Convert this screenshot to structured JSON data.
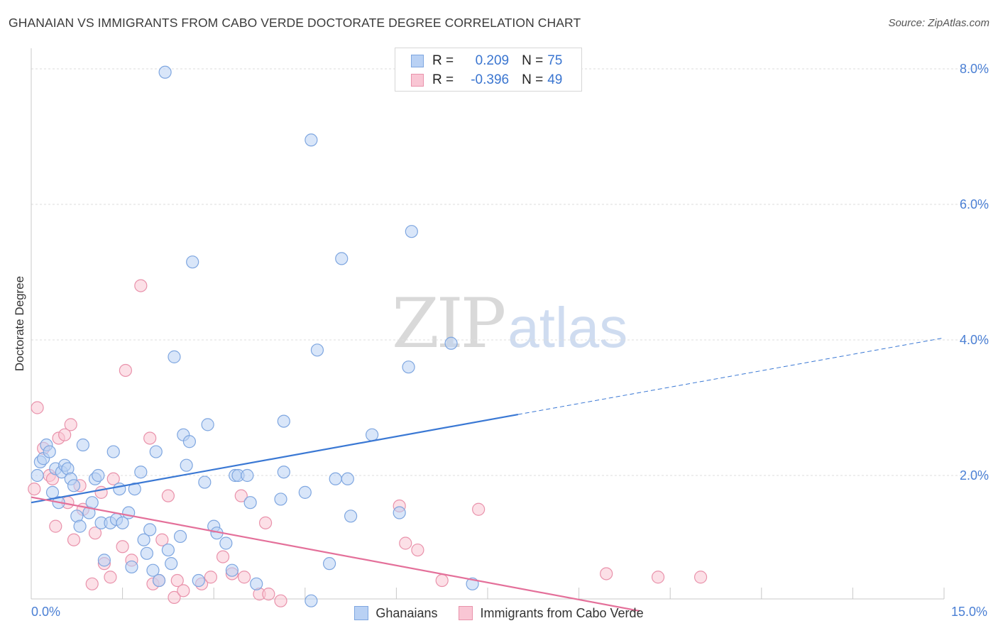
{
  "title": "GHANAIAN VS IMMIGRANTS FROM CABO VERDE DOCTORATE DEGREE CORRELATION CHART",
  "source": "Source: ZipAtlas.com",
  "watermark": {
    "zip": "ZIP",
    "atlas": "atlas"
  },
  "legend": {
    "rows": [
      {
        "r_label": "R =",
        "r_value": "0.209",
        "n_label": "N =",
        "n_value": "75",
        "fill": "#b9d1f4",
        "stroke": "#7ea6e0"
      },
      {
        "r_label": "R =",
        "r_value": "-0.396",
        "n_label": "N =",
        "n_value": "49",
        "fill": "#f9c6d4",
        "stroke": "#e992ab"
      }
    ]
  },
  "bottom_legend": [
    {
      "label": "Ghanaians",
      "fill": "#b9d1f4",
      "stroke": "#7ea6e0"
    },
    {
      "label": "Immigrants from Cabo Verde",
      "fill": "#f9c6d4",
      "stroke": "#e992ab"
    }
  ],
  "chart_data": {
    "type": "scatter",
    "title": "GHANAIAN VS IMMIGRANTS FROM CABO VERDE DOCTORATE DEGREE CORRELATION CHART",
    "xlabel": "",
    "ylabel": "Doctorate Degree",
    "xlim": [
      0,
      15
    ],
    "ylim": [
      0,
      8
    ],
    "x_tick_labels": [
      "0.0%",
      "15.0%"
    ],
    "y_ticks": [
      2,
      4,
      6,
      8
    ],
    "y_tick_labels": [
      "2.0%",
      "4.0%",
      "6.0%",
      "8.0%"
    ],
    "grid": true,
    "colors": {
      "blue": "#3a78d4",
      "pink": "#e4709a"
    },
    "series": [
      {
        "name": "Ghanaians",
        "color": "#3a78d4",
        "trend": {
          "x": [
            0,
            8.0
          ],
          "y": [
            1.6,
            2.9
          ],
          "dashed_to": [
            15,
            4.03
          ]
        },
        "points": [
          [
            0.1,
            2.0
          ],
          [
            0.15,
            2.2
          ],
          [
            0.2,
            2.25
          ],
          [
            0.25,
            2.45
          ],
          [
            0.3,
            2.35
          ],
          [
            0.35,
            1.75
          ],
          [
            0.4,
            2.1
          ],
          [
            0.45,
            1.6
          ],
          [
            0.5,
            2.05
          ],
          [
            0.55,
            2.15
          ],
          [
            0.6,
            2.1
          ],
          [
            0.65,
            1.95
          ],
          [
            0.7,
            1.85
          ],
          [
            0.75,
            1.4
          ],
          [
            0.8,
            1.25
          ],
          [
            0.85,
            2.45
          ],
          [
            0.95,
            1.45
          ],
          [
            1.0,
            1.6
          ],
          [
            1.05,
            1.95
          ],
          [
            1.1,
            2.0
          ],
          [
            1.15,
            1.3
          ],
          [
            1.2,
            0.75
          ],
          [
            1.3,
            1.3
          ],
          [
            1.35,
            2.35
          ],
          [
            1.4,
            1.35
          ],
          [
            1.45,
            1.8
          ],
          [
            1.5,
            1.3
          ],
          [
            1.6,
            1.45
          ],
          [
            1.65,
            0.65
          ],
          [
            1.7,
            1.8
          ],
          [
            1.8,
            2.05
          ],
          [
            1.85,
            1.05
          ],
          [
            1.9,
            0.85
          ],
          [
            1.95,
            1.2
          ],
          [
            2.0,
            0.6
          ],
          [
            2.05,
            2.35
          ],
          [
            2.1,
            0.45
          ],
          [
            2.2,
            7.95
          ],
          [
            2.25,
            0.9
          ],
          [
            2.3,
            0.7
          ],
          [
            2.35,
            3.75
          ],
          [
            2.45,
            1.1
          ],
          [
            2.5,
            2.6
          ],
          [
            2.55,
            2.15
          ],
          [
            2.6,
            2.5
          ],
          [
            2.65,
            5.15
          ],
          [
            2.75,
            0.45
          ],
          [
            2.85,
            1.9
          ],
          [
            2.9,
            2.75
          ],
          [
            3.0,
            1.25
          ],
          [
            3.05,
            1.15
          ],
          [
            3.2,
            1.0
          ],
          [
            3.3,
            0.6
          ],
          [
            3.35,
            2.0
          ],
          [
            3.4,
            2.0
          ],
          [
            3.55,
            2.0
          ],
          [
            3.6,
            1.6
          ],
          [
            3.7,
            0.4
          ],
          [
            4.1,
            1.65
          ],
          [
            4.15,
            2.8
          ],
          [
            4.15,
            2.05
          ],
          [
            4.5,
            1.75
          ],
          [
            4.6,
            0.15
          ],
          [
            4.6,
            6.95
          ],
          [
            4.7,
            3.85
          ],
          [
            4.9,
            0.7
          ],
          [
            5.0,
            1.95
          ],
          [
            5.1,
            5.2
          ],
          [
            5.2,
            1.95
          ],
          [
            5.25,
            1.4
          ],
          [
            5.6,
            2.6
          ],
          [
            6.05,
            1.45
          ],
          [
            6.2,
            3.6
          ],
          [
            6.25,
            5.6
          ],
          [
            6.9,
            3.95
          ],
          [
            7.25,
            0.4
          ]
        ]
      },
      {
        "name": "Immigrants from Cabo Verde",
        "color": "#e4709a",
        "trend": {
          "x": [
            0,
            10.0
          ],
          "y": [
            1.68,
            0.0
          ]
        },
        "points": [
          [
            0.05,
            1.8
          ],
          [
            0.1,
            3.0
          ],
          [
            0.2,
            2.4
          ],
          [
            0.3,
            2.0
          ],
          [
            0.35,
            1.95
          ],
          [
            0.4,
            1.25
          ],
          [
            0.45,
            2.55
          ],
          [
            0.55,
            2.6
          ],
          [
            0.6,
            1.6
          ],
          [
            0.65,
            2.75
          ],
          [
            0.7,
            1.05
          ],
          [
            0.8,
            1.85
          ],
          [
            0.85,
            1.5
          ],
          [
            1.0,
            0.4
          ],
          [
            1.05,
            1.15
          ],
          [
            1.15,
            1.75
          ],
          [
            1.2,
            0.7
          ],
          [
            1.3,
            0.5
          ],
          [
            1.35,
            1.95
          ],
          [
            1.5,
            0.95
          ],
          [
            1.55,
            3.55
          ],
          [
            1.65,
            0.75
          ],
          [
            1.8,
            4.8
          ],
          [
            1.95,
            2.55
          ],
          [
            2.0,
            0.4
          ],
          [
            2.1,
            0.45
          ],
          [
            2.15,
            1.05
          ],
          [
            2.25,
            1.7
          ],
          [
            2.35,
            0.2
          ],
          [
            2.4,
            0.45
          ],
          [
            2.5,
            0.3
          ],
          [
            2.8,
            0.4
          ],
          [
            2.95,
            0.5
          ],
          [
            3.15,
            0.8
          ],
          [
            3.3,
            0.55
          ],
          [
            3.45,
            1.7
          ],
          [
            3.5,
            0.5
          ],
          [
            3.75,
            0.25
          ],
          [
            3.85,
            1.3
          ],
          [
            3.9,
            0.25
          ],
          [
            4.1,
            0.15
          ],
          [
            6.05,
            1.55
          ],
          [
            6.15,
            1.0
          ],
          [
            6.35,
            0.9
          ],
          [
            6.75,
            0.45
          ],
          [
            7.35,
            1.5
          ],
          [
            9.45,
            0.55
          ],
          [
            10.3,
            0.5
          ],
          [
            11.0,
            0.5
          ]
        ]
      }
    ]
  }
}
